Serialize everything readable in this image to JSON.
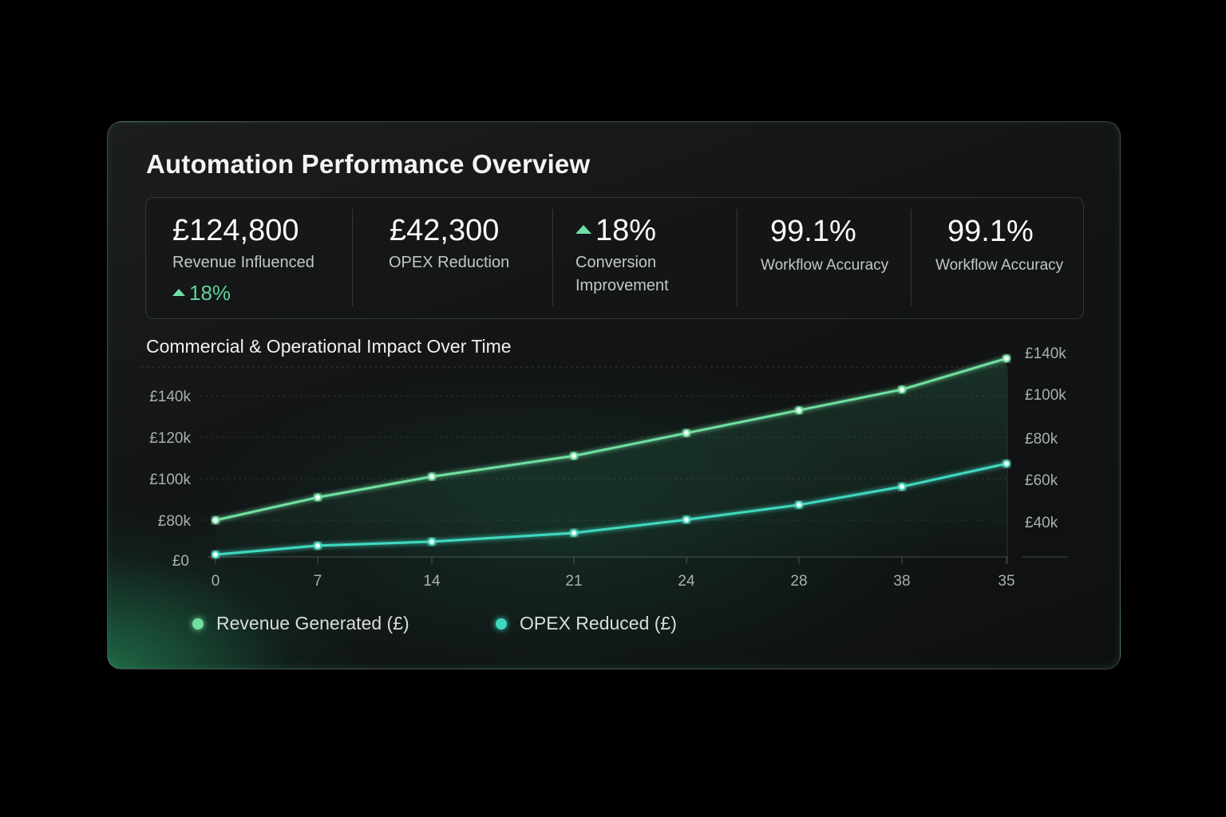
{
  "title": "Automation Performance Overview",
  "kpis": [
    {
      "value": "£124,800",
      "label": "Revenue Influenced",
      "delta": "18%"
    },
    {
      "value": "£42,300",
      "label": "OPEX Reduction"
    },
    {
      "value": "18%",
      "label_line1": "Conversion",
      "label_line2": "Improvement"
    },
    {
      "value": "99.1%",
      "label": "Workflow Accuracy"
    },
    {
      "value": "99.1%",
      "label": "Workflow Accuracy"
    }
  ],
  "colors": {
    "revenue": "#6fe0a0",
    "opex": "#3fd9c0",
    "accent": "#5fd39a"
  },
  "chart_data": {
    "type": "line",
    "title": "Commercial & Operational Impact Over Time",
    "categories": [
      "0",
      "7",
      "14",
      "21",
      "24",
      "28",
      "38",
      "35"
    ],
    "left_axis": {
      "ticks": [
        140,
        120,
        100,
        80
      ],
      "tick_labels": [
        "£140k",
        "£120k",
        "£100k",
        "£80k"
      ],
      "zero_label": "£0"
    },
    "right_axis": {
      "tick_labels": [
        "£140k",
        "£100k",
        "£80k",
        "£60k",
        "£40k"
      ]
    },
    "series": [
      {
        "name": "Revenue Generated (£)",
        "axis": "left",
        "unit": "£k",
        "values": [
          80,
          91,
          101,
          111,
          122,
          133,
          143,
          158
        ]
      },
      {
        "name": "OPEX Reduced (£)",
        "axis": "right",
        "unit": "£k",
        "values": [
          24.5,
          28.7,
          30.6,
          34.7,
          41,
          48,
          56.6,
          67.5
        ]
      }
    ],
    "grid": true,
    "legend": "bottom-left"
  }
}
